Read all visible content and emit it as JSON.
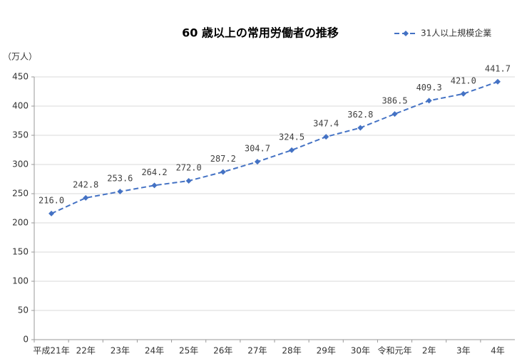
{
  "chart_data": {
    "type": "line",
    "title": "60 歳以上の常用労働者の推移",
    "y_label": "（万人）",
    "categories": [
      "平成21年",
      "22年",
      "23年",
      "24年",
      "25年",
      "26年",
      "27年",
      "28年",
      "29年",
      "30年",
      "令和元年",
      "2年",
      "3年",
      "4年"
    ],
    "series": [
      {
        "name": "31人以上規模企業",
        "color": "#4472c4",
        "values": [
          216.0,
          242.8,
          253.6,
          264.2,
          272.0,
          287.2,
          304.7,
          324.5,
          347.4,
          362.8,
          386.5,
          409.3,
          421.0,
          441.7
        ],
        "value_labels": [
          "216.0",
          "242.8",
          "253.6",
          "264.2",
          "272.0",
          "287.2",
          "304.7",
          "324.5",
          "347.4",
          "362.8",
          "386.5",
          "409.3",
          "421.0",
          "441.7"
        ]
      }
    ],
    "ylim": [
      0,
      450
    ],
    "yticks": [
      0,
      50,
      100,
      150,
      200,
      250,
      300,
      350,
      400,
      450
    ],
    "grid": true,
    "legend": "top-right"
  }
}
